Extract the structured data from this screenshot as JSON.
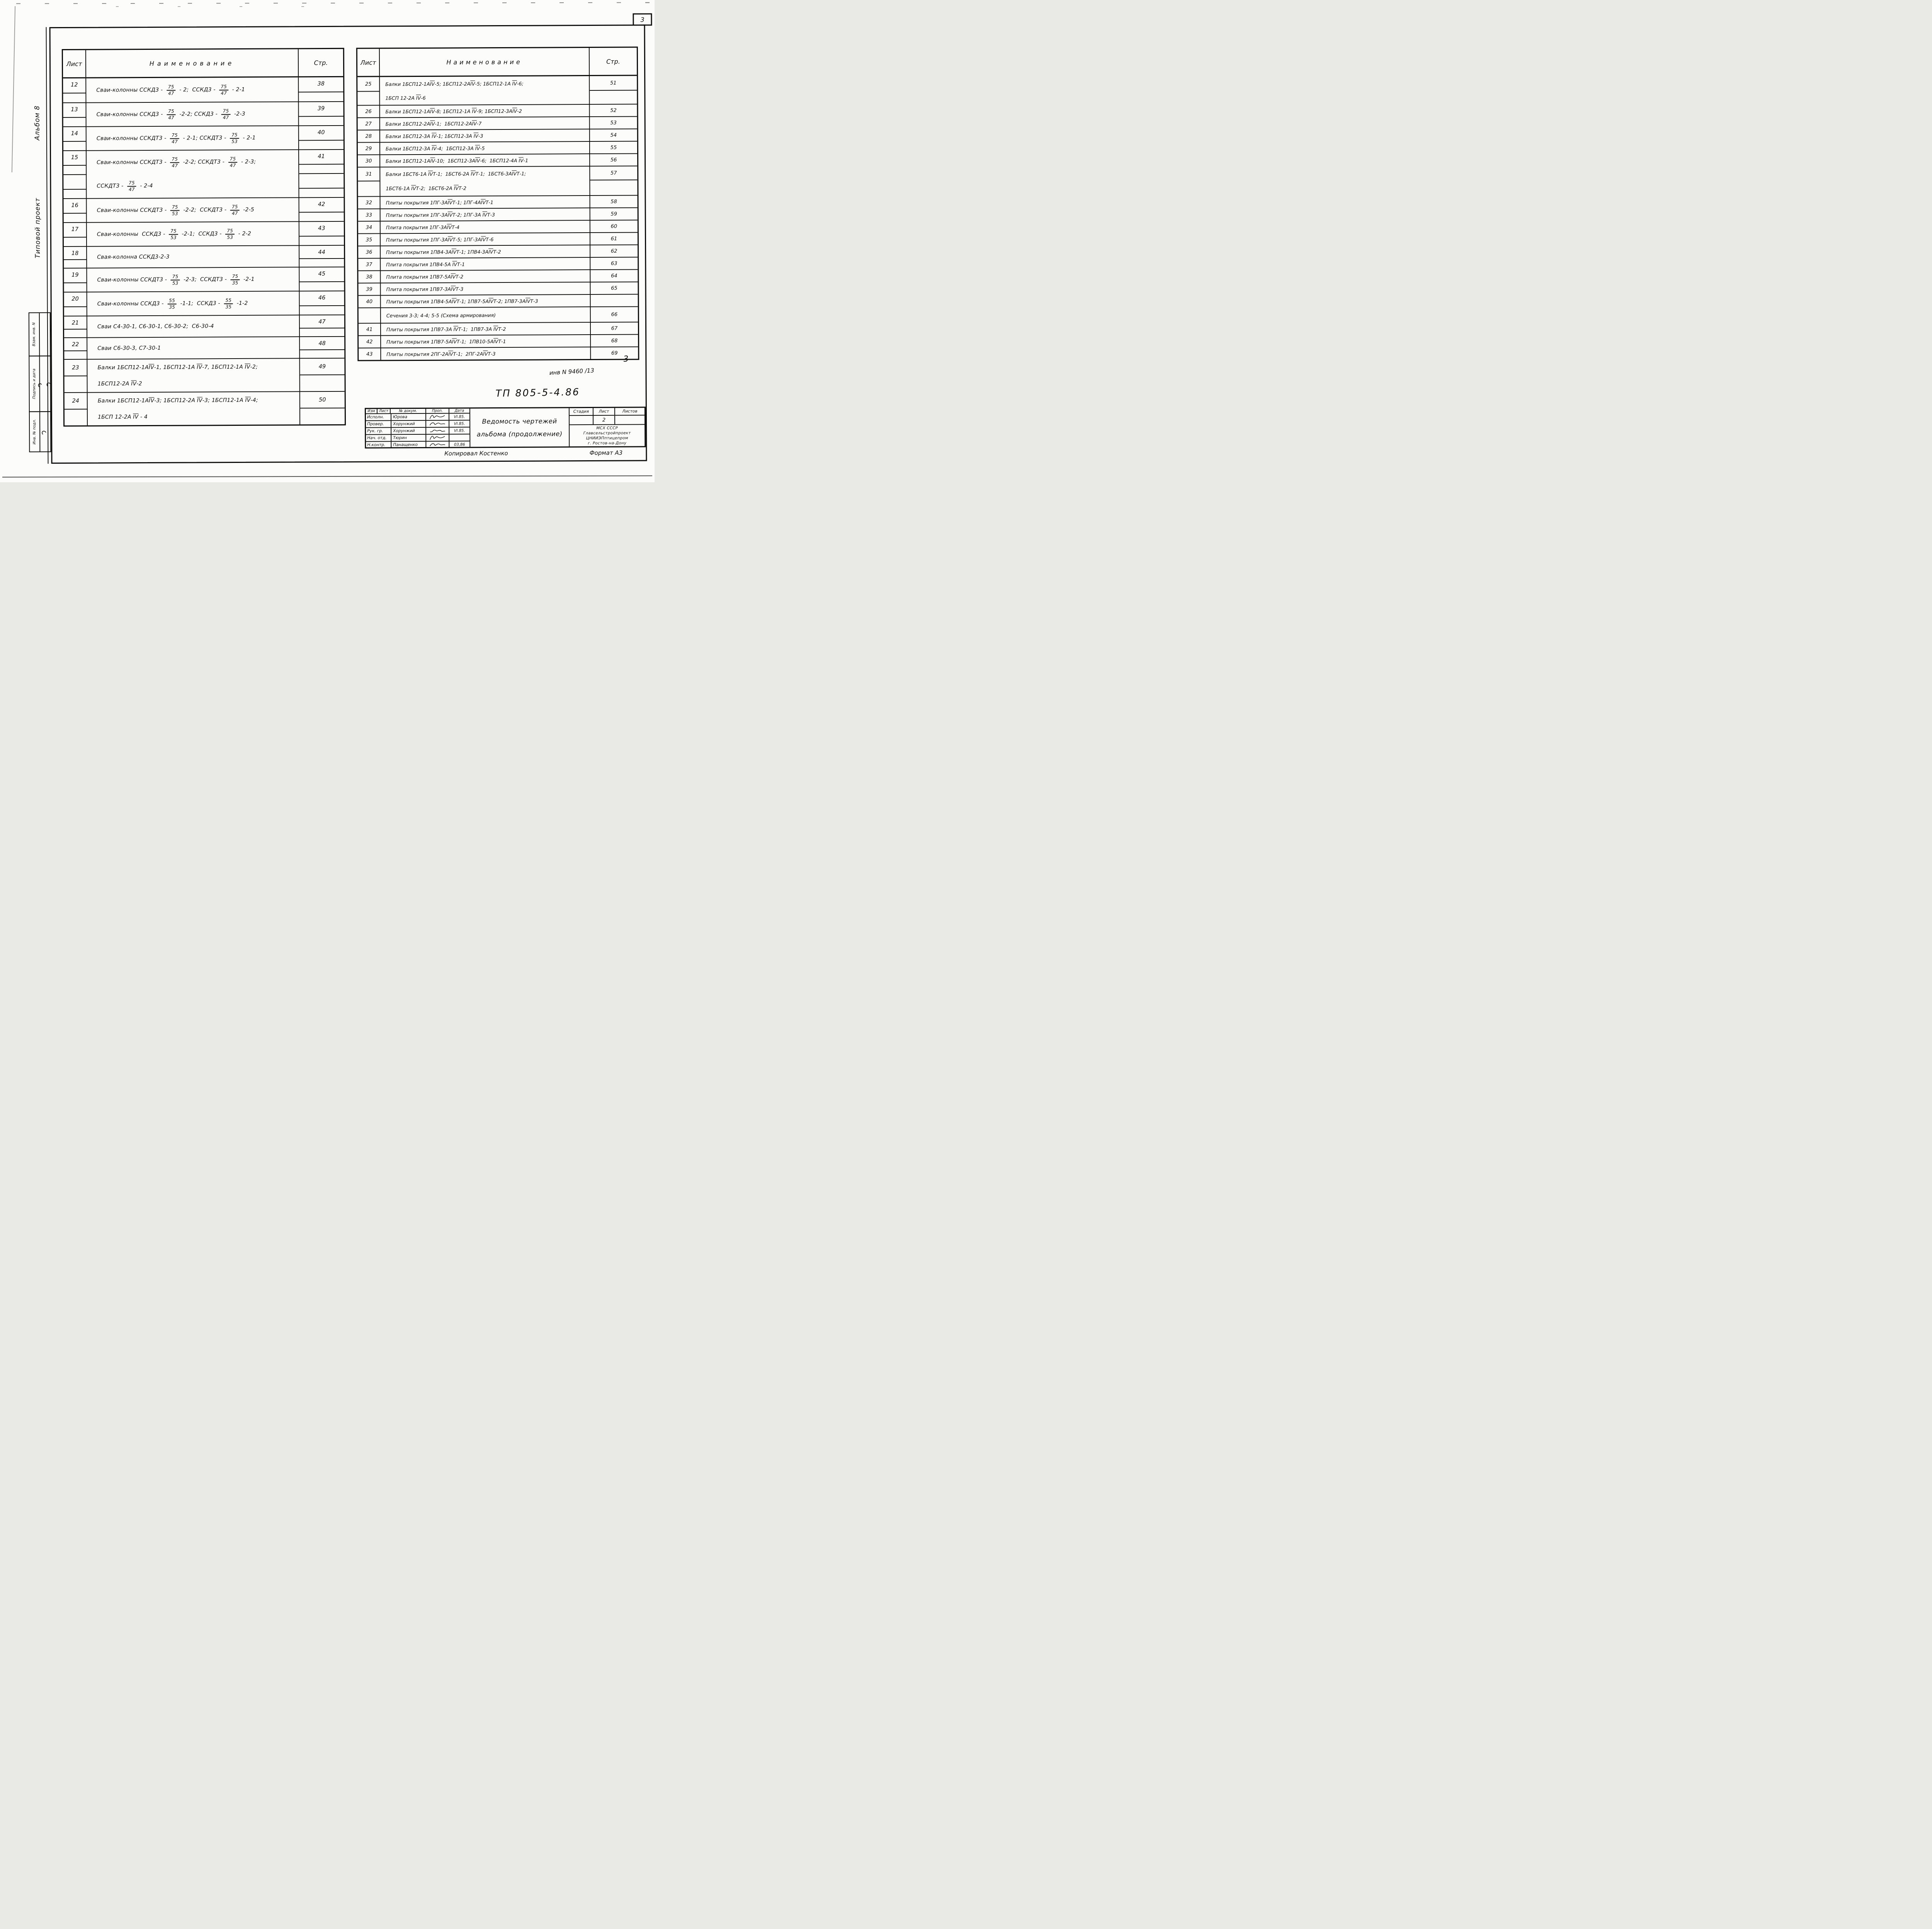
{
  "page": {
    "corner_number": "3",
    "handwritten_mark": "3",
    "inv_note": "инв N 9460 /13"
  },
  "margin": {
    "album": "Альбом 8",
    "project_type": "Типовой проект",
    "stamps": [
      "Взам. инв. N",
      "Подпись и дата",
      "Инв. № подл."
    ]
  },
  "tables": {
    "headers": {
      "sheet": "Лист",
      "name": "Наименование",
      "page": "Стр."
    },
    "left": {
      "rows": [
        {
          "sheet": "12",
          "name": "Сваи-колонны ССКД3 - {75/47} - 2;  ССКД3 - {75/47} - 2-1",
          "page": "38"
        },
        {
          "sheet": "13",
          "name": "Сваи-колонны ССКД3 - {75/47} -2-2; ССКД3 - {75/47} -2-3",
          "page": "39"
        },
        {
          "sheet": "14",
          "name": "Сваи-колонны ССКДТ3 - {75/47} - 2-1; ССКДТ3 - {75/53} - 2-1",
          "page": "40"
        },
        {
          "sheet": "15",
          "name": "Сваи-колонны ССКДТ3 - {75/47} -2-2; ССКДТ3 - {75/47} - 2-3;",
          "page": "41"
        },
        {
          "sheet": "",
          "name": "ССКДТ3 - {75/47} - 2-4",
          "page": ""
        },
        {
          "sheet": "16",
          "name": "Сваи-колонны ССКДТ3 - {75/53} -2-2;  ССКДТ3 - {75/47} -2-5",
          "page": "42"
        },
        {
          "sheet": "17",
          "name": "Сваи-колонны  ССКД3 - {75/53} -2-1;  ССКД3 - {75/53} - 2-2",
          "page": "43"
        },
        {
          "sheet": "18",
          "name": "Свая-колонна ССКД3-2-3",
          "page": "44"
        },
        {
          "sheet": "19",
          "name": "Сваи-колонны ССКДТ3 - {75/53} -2-3;  ССКДТ3 - {75/35} -2-1",
          "page": "45"
        },
        {
          "sheet": "20",
          "name": "Сваи-колонны ССКД3 - {55/35} -1-1;  ССКД3 - {55/35} -1-2",
          "page": "46"
        },
        {
          "sheet": "21",
          "name": "Сваи С4-30-1, С6-30-1, С6-30-2;  С6-30-4",
          "page": "47"
        },
        {
          "sheet": "22",
          "name": "Сваи С6-30-3, С7-30-1",
          "page": "48"
        },
        {
          "sheet": "23",
          "name": "Балки 1БСП12-1А[IV]-1, 1БСП12-1А [IV]-7, 1БСП12-1А [IV]-2;",
          "page": "49"
        },
        {
          "sheet": "",
          "name": "1БСП12-2А [IV]-2",
          "page": ""
        },
        {
          "sheet": "24",
          "name": "Балки 1БСП12-1А[IV]-3; 1БСП12-2А [IV]-3; 1БСП12-1А [IV]-4;",
          "page": "50"
        },
        {
          "sheet": "",
          "name": "1БСП 12-2А [IV] - 4",
          "page": ""
        }
      ]
    },
    "right": {
      "rows": [
        {
          "sheet": "25",
          "name": "Балки 1БСП12-1А[IV]-5; 1БСП12-2А[IV]-5; 1БСП12-1А [IV]-6;",
          "page": "51"
        },
        {
          "sheet": "",
          "name": "1БСП 12-2А [IV]-6",
          "page": ""
        },
        {
          "sheet": "26",
          "name": "Балки 1БСП12-1А[IV]-8; 1БСП12-1А [IV]-9; 1БСП12-3А[IV]-2",
          "page": "52"
        },
        {
          "sheet": "27",
          "name": "Балки 1БСП12-2А[IV]-1;  1БСП12-2А[IV]-7",
          "page": "53"
        },
        {
          "sheet": "28",
          "name": "Балки 1БСП12-3А [IV]-1; 1БСП12-3А [IV]-3",
          "page": "54"
        },
        {
          "sheet": "29",
          "name": "Балки 1БСП12-3А [IV]-4;  1БСП12-3А [IV]-5",
          "page": "55"
        },
        {
          "sheet": "30",
          "name": "Балки 1БСП12-1А[IV]-10;  1БСП12-3А[IV]-6;  1БСП12-4А [IV]-1",
          "page": "56"
        },
        {
          "sheet": "31",
          "name": "Балки 1БСТ6-1А [IV]Т-1;  1БСТ6-2А [IV]Т-1;  1БСТ6-3А[IV]Т-1;",
          "page": "57"
        },
        {
          "sheet": "",
          "name": "1БСТ6-1А [IV]Т-2;  1БСТ6-2А [IV]Т-2",
          "page": ""
        },
        {
          "sheet": "32",
          "name": "Плиты покрытия 1ПГ-3А[IV]Т-1; 1ПГ-4А[IV]Т-1",
          "page": "58"
        },
        {
          "sheet": "33",
          "name": "Плиты покрытия 1ПГ-3А[IV]Т-2; 1ПГ-3А [IV]Т-3",
          "page": "59"
        },
        {
          "sheet": "34",
          "name": "Плита покрытия 1ПГ-3А[IV]Т-4",
          "page": "60"
        },
        {
          "sheet": "35",
          "name": "Плиты покрытия 1ПГ-3А[IV]Т-5; 1ПГ-3А[IV]Т-6",
          "page": "61"
        },
        {
          "sheet": "36",
          "name": "Плиты покрытия 1ПВ4-3А[IV]Т-1; 1ПВ4-3А[IV]Т-2",
          "page": "62"
        },
        {
          "sheet": "37",
          "name": "Плита покрытия 1ПВ4-5А [IV]Т-1",
          "page": "63"
        },
        {
          "sheet": "38",
          "name": "Плита покрытия 1ПВ7-5А[IV]Т-2",
          "page": "64"
        },
        {
          "sheet": "39",
          "name": "Плита покрытия 1ПВ7-3А[IV]Т-3",
          "page": "65"
        },
        {
          "sheet": "40",
          "name": "Плиты покрытия 1ПВ4-5А[IV]Т-1; 1ПВ7-5А[IV]Т-2; 1ПВ7-3А[IV]Т-3",
          "page": ""
        },
        {
          "sheet": "",
          "name": "Сечения 3-3; 4-4; 5-5 (Схема армирования)",
          "page": "66"
        },
        {
          "sheet": "41",
          "name": "Плиты покрытия 1ПВ7-3А [IV]Т-1;  1ПВ7-3А [IV]Т-2",
          "page": "67"
        },
        {
          "sheet": "42",
          "name": "Плиты покрытия 1ПВ7-5А[IV]Т-1;  1ПВ10-5А[IV]Т-1",
          "page": "68"
        },
        {
          "sheet": "43",
          "name": "Плиты покрытия 2ПГ-2А[IV]Т-1;  2ПГ-2А[IV]Т-3",
          "page": "69"
        }
      ]
    }
  },
  "title_block": {
    "doc_number": "ТП 805-5-4.86",
    "revision_header": [
      "Изм",
      "Лист",
      "№ докум.",
      "Проп.",
      "Дата"
    ],
    "roles": [
      {
        "role": "Исполн.",
        "name": "Юрова",
        "date": "VI.85."
      },
      {
        "role": "Провер.",
        "name": "Хорунжий",
        "date": "VI.85."
      },
      {
        "role": "Рук. гр.",
        "name": "Хорунжий",
        "date": "VI.85."
      },
      {
        "role": "Нач. отд.",
        "name": "Тюрин",
        "date": ""
      },
      {
        "role": "Н.контр.",
        "name": "Панащенко",
        "date": "03,86"
      }
    ],
    "title_line1": "Ведомость чертежей",
    "title_line2": "альбома (продолжение)",
    "stage_header": [
      "Стадия",
      "Лист",
      "Листов"
    ],
    "stage_values": [
      "",
      "2",
      ""
    ],
    "org_lines": [
      "МСХ СССР",
      "Главсельстройпроект",
      "ЦНИИЭПптицепром",
      "г. Ростов-на-Дону"
    ],
    "copied_by": "Копировал Костенко",
    "format": "Формат А3"
  }
}
